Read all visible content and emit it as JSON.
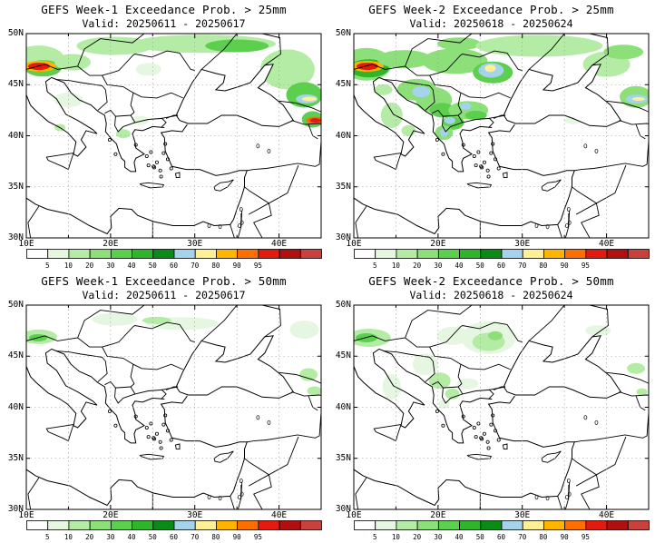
{
  "panels": [
    {
      "title": "GEFS Week-1 Exceedance Prob. > 25mm",
      "valid": "Valid: 20250611 - 20250617",
      "variant": "w1_25"
    },
    {
      "title": "GEFS Week-2 Exceedance Prob. > 25mm",
      "valid": "Valid: 20250618 - 20250624",
      "variant": "w2_25"
    },
    {
      "title": "GEFS Week-1 Exceedance Prob. > 50mm",
      "valid": "Valid: 20250611 - 20250617",
      "variant": "w1_50"
    },
    {
      "title": "GEFS Week-2 Exceedance Prob. > 50mm",
      "valid": "Valid: 20250618 - 20250624",
      "variant": "w2_50"
    }
  ],
  "axes": {
    "lat_labels": [
      "50N",
      "45N",
      "40N",
      "35N",
      "30N"
    ],
    "lon_labels": [
      "10E",
      "20E",
      "30E",
      "40E"
    ],
    "lon_range": [
      10,
      45
    ],
    "lat_range": [
      30,
      50
    ]
  },
  "legend": {
    "labels": [
      "5",
      "10",
      "20",
      "30",
      "40",
      "50",
      "60",
      "70",
      "80",
      "90",
      "95"
    ],
    "colors": [
      "#ffffff",
      "#e6f7e1",
      "#b5eca5",
      "#8ddf7a",
      "#5ccf4e",
      "#2eb52b",
      "#0a8a17",
      "#a6d3ec",
      "#ffef96",
      "#ffb400",
      "#ff6e00",
      "#e11b0f",
      "#b01010",
      "#c8413c"
    ]
  }
}
